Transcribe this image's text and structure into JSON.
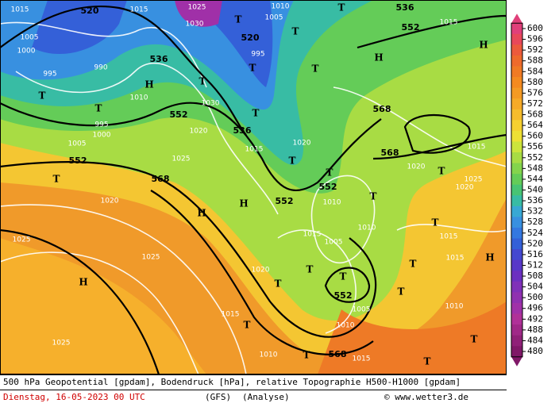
{
  "map_labels": [
    "520",
    "520",
    "536",
    "536",
    "536",
    "552",
    "552",
    "552",
    "552",
    "552",
    "552",
    "568",
    "568",
    "568",
    "568",
    "1015",
    "1025",
    "1030",
    "1005",
    "1010",
    "995",
    "990",
    "995",
    "1000",
    "1005",
    "1015",
    "1010",
    "1030",
    "1020",
    "1015",
    "1025",
    "1020",
    "1025",
    "1025",
    "1025",
    "1015",
    "1020",
    "1010",
    "1015",
    "1005",
    "1010",
    "1015",
    "1015",
    "1010",
    "1005",
    "1010",
    "1015",
    "1010",
    "1020",
    "1015",
    "1025",
    "1020",
    "1020",
    "995",
    "1000",
    "1005",
    "1015",
    "H",
    "H",
    "H",
    "H",
    "H",
    "H",
    "H",
    "T",
    "T",
    "T",
    "T",
    "T",
    "T",
    "T",
    "T",
    "T",
    "T",
    "T",
    "T",
    "T",
    "T",
    "T",
    "T",
    "T",
    "T",
    "T",
    "T",
    "T",
    "T",
    "T",
    "T"
  ],
  "legend": {
    "labels": [
      600,
      596,
      592,
      588,
      584,
      580,
      576,
      572,
      568,
      564,
      560,
      556,
      552,
      548,
      544,
      540,
      536,
      532,
      528,
      524,
      520,
      516,
      512,
      508,
      504,
      500,
      496,
      492,
      488,
      484,
      480
    ],
    "colors": [
      "#e0407a",
      "#e8485a",
      "#ec5a3c",
      "#ee6a2c",
      "#f07a24",
      "#f48a20",
      "#f49a24",
      "#f6aa28",
      "#f6bc2c",
      "#f6d030",
      "#eee034",
      "#cce43c",
      "#a8dc44",
      "#84d44c",
      "#64cc58",
      "#48c474",
      "#38bca4",
      "#38a8d4",
      "#3890e0",
      "#3478e0",
      "#3460d8",
      "#4448d0",
      "#5838c8",
      "#6c30c0",
      "#8030b8",
      "#9030b0",
      "#a030a8",
      "#b03098",
      "#a02888",
      "#902078",
      "#801868"
    ]
  },
  "footer": {
    "line1": "500 hPa Geopotential [gpdam], Bodendruck [hPa], relative Topographie H500-H1000 [gpdam]",
    "date": "Dienstag, 16-05-2023  00 UTC",
    "model": "(GFS)",
    "run": "(Analyse)",
    "credit": "© www.wetter3.de"
  }
}
